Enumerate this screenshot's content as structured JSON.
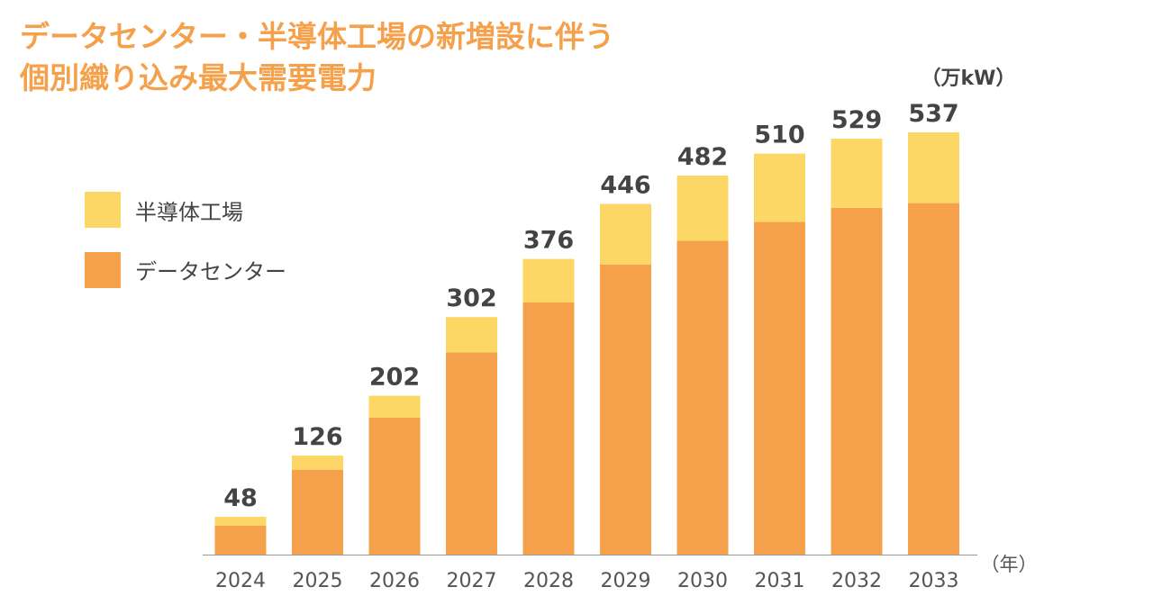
{
  "chart_data": {
    "type": "bar",
    "stacked": true,
    "title_lines": [
      "データセンター・半導体工場の新増設に伴う",
      "個別織り込み最大需要電力"
    ],
    "unit_label": "（万kW）",
    "x_unit_label": "（年）",
    "categories": [
      "2024",
      "2025",
      "2026",
      "2027",
      "2028",
      "2029",
      "2030",
      "2031",
      "2032",
      "2033"
    ],
    "series": [
      {
        "name": "データセンター",
        "color": "#F5A04A",
        "values": [
          37,
          108,
          174,
          257,
          321,
          369,
          399,
          423,
          441,
          447
        ]
      },
      {
        "name": "半導体工場",
        "color": "#FDD766",
        "values": [
          11,
          18,
          28,
          45,
          55,
          77,
          83,
          87,
          88,
          90
        ]
      }
    ],
    "totals": [
      "48",
      "126",
      "202",
      "302",
      "376",
      "446",
      "482",
      "510",
      "529",
      "537"
    ],
    "ylim": [
      0,
      537
    ],
    "grid": false,
    "legend_placement": "top-left"
  }
}
